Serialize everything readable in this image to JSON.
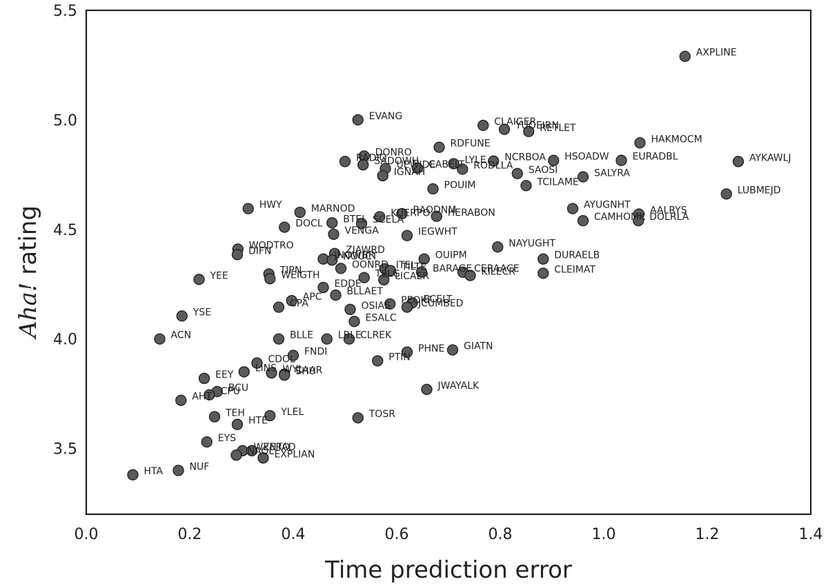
{
  "chart_data": {
    "type": "scatter",
    "xlabel": "Time prediction error",
    "ylabel_italic": "Aha!",
    "ylabel_rest": " rating",
    "xlim": [
      0.0,
      1.4
    ],
    "ylim": [
      3.2,
      5.5
    ],
    "x_ticks": [
      "0.0",
      "0.2",
      "0.4",
      "0.6",
      "0.8",
      "1.0",
      "1.2",
      "1.4"
    ],
    "y_ticks": [
      "3.5",
      "4.0",
      "4.5",
      "5.0",
      "5.5"
    ],
    "grid": false,
    "colors": {
      "marker_fill": "#5b5b5b",
      "marker_edge": "#1e1e1e",
      "text": "#222222"
    },
    "points": [
      {
        "label": "AXPLINE",
        "x": 1.157,
        "y": 5.29
      },
      {
        "label": "EVANG",
        "x": 0.525,
        "y": 5.0
      },
      {
        "label": "CLAIGER",
        "x": 0.767,
        "y": 4.975
      },
      {
        "label": "YUOEIRN",
        "x": 0.808,
        "y": 4.957
      },
      {
        "label": "RETLET",
        "x": 0.855,
        "y": 4.947
      },
      {
        "label": "HAKMOCM",
        "x": 1.07,
        "y": 4.895
      },
      {
        "label": "RDFUNE",
        "x": 0.682,
        "y": 4.875
      },
      {
        "label": "DONRO",
        "x": 0.537,
        "y": 4.835
      },
      {
        "label": "RADIO",
        "x": 0.5,
        "y": 4.81
      },
      {
        "label": "SADOWH",
        "x": 0.535,
        "y": 4.795
      },
      {
        "label": "UEWIDE",
        "x": 0.578,
        "y": 4.778
      },
      {
        "label": "CABELT",
        "x": 0.64,
        "y": 4.78
      },
      {
        "label": "LYLE",
        "x": 0.71,
        "y": 4.8
      },
      {
        "label": "RODLLA",
        "x": 0.727,
        "y": 4.775
      },
      {
        "label": "NCRBOA",
        "x": 0.787,
        "y": 4.812
      },
      {
        "label": "HSOADW",
        "x": 0.903,
        "y": 4.815
      },
      {
        "label": "EURADBL",
        "x": 1.034,
        "y": 4.815
      },
      {
        "label": "AYKAWLJ",
        "x": 1.26,
        "y": 4.81
      },
      {
        "label": "IGNAH",
        "x": 0.573,
        "y": 4.745
      },
      {
        "label": "SAOSI",
        "x": 0.833,
        "y": 4.755
      },
      {
        "label": "SALYRA",
        "x": 0.96,
        "y": 4.74
      },
      {
        "label": "POUIM",
        "x": 0.67,
        "y": 4.685
      },
      {
        "label": "TCILAME",
        "x": 0.85,
        "y": 4.7
      },
      {
        "label": "LUBMEJD",
        "x": 1.237,
        "y": 4.662
      },
      {
        "label": "HWY",
        "x": 0.313,
        "y": 4.595
      },
      {
        "label": "MARNOD",
        "x": 0.413,
        "y": 4.578
      },
      {
        "label": "RAODNM",
        "x": 0.61,
        "y": 4.572
      },
      {
        "label": "KUERPO",
        "x": 0.567,
        "y": 4.558
      },
      {
        "label": "HERABON",
        "x": 0.677,
        "y": 4.56
      },
      {
        "label": "AYUGNHT",
        "x": 0.94,
        "y": 4.595
      },
      {
        "label": "AALRYS",
        "x": 1.068,
        "y": 4.57
      },
      {
        "label": "CAMHOMK",
        "x": 0.96,
        "y": 4.54
      },
      {
        "label": "DOLRLA",
        "x": 1.067,
        "y": 4.54
      },
      {
        "label": "DOCL",
        "x": 0.383,
        "y": 4.51
      },
      {
        "label": "BTEL",
        "x": 0.475,
        "y": 4.53
      },
      {
        "label": "SCELA",
        "x": 0.532,
        "y": 4.527
      },
      {
        "label": "VENGA",
        "x": 0.478,
        "y": 4.478
      },
      {
        "label": "IEGWHT",
        "x": 0.62,
        "y": 4.472
      },
      {
        "label": "WODTRO",
        "x": 0.293,
        "y": 4.41
      },
      {
        "label": "DIFN",
        "x": 0.292,
        "y": 4.385
      },
      {
        "label": "NAYUGHT",
        "x": 0.795,
        "y": 4.42
      },
      {
        "label": "ZIAWRD",
        "x": 0.48,
        "y": 4.39
      },
      {
        "label": "JNOWBR",
        "x": 0.458,
        "y": 4.365
      },
      {
        "label": "NOUCT",
        "x": 0.475,
        "y": 4.36
      },
      {
        "label": "OUIPM",
        "x": 0.653,
        "y": 4.365
      },
      {
        "label": "DURAELB",
        "x": 0.883,
        "y": 4.365
      },
      {
        "label": "OONRD",
        "x": 0.492,
        "y": 4.322
      },
      {
        "label": "ITEL",
        "x": 0.577,
        "y": 4.32
      },
      {
        "label": "TILTE",
        "x": 0.588,
        "y": 4.312
      },
      {
        "label": "BARAGE",
        "x": 0.648,
        "y": 4.305
      },
      {
        "label": "CERAACE",
        "x": 0.728,
        "y": 4.305
      },
      {
        "label": "KILECR",
        "x": 0.742,
        "y": 4.29
      },
      {
        "label": "CLEIMAT",
        "x": 0.883,
        "y": 4.3
      },
      {
        "label": "TIPN",
        "x": 0.353,
        "y": 4.297
      },
      {
        "label": "WEIGTH",
        "x": 0.355,
        "y": 4.275
      },
      {
        "label": "YEE",
        "x": 0.218,
        "y": 4.272
      },
      {
        "label": "TELG",
        "x": 0.537,
        "y": 4.28
      },
      {
        "label": "LICAER",
        "x": 0.575,
        "y": 4.27
      },
      {
        "label": "EDDE",
        "x": 0.458,
        "y": 4.235
      },
      {
        "label": "BLLAET",
        "x": 0.482,
        "y": 4.2
      },
      {
        "label": "APC",
        "x": 0.397,
        "y": 4.175
      },
      {
        "label": "CPA",
        "x": 0.372,
        "y": 4.145
      },
      {
        "label": "PEOKF",
        "x": 0.587,
        "y": 4.16
      },
      {
        "label": "ECELT",
        "x": 0.63,
        "y": 4.165
      },
      {
        "label": "OSIAS",
        "x": 0.51,
        "y": 4.135
      },
      {
        "label": "JCUMBED",
        "x": 0.62,
        "y": 4.145
      },
      {
        "label": "YSE",
        "x": 0.185,
        "y": 4.105
      },
      {
        "label": "ESALC",
        "x": 0.518,
        "y": 4.08
      },
      {
        "label": "ACN",
        "x": 0.142,
        "y": 4.0
      },
      {
        "label": "BLLE",
        "x": 0.372,
        "y": 4.0
      },
      {
        "label": "LBLE",
        "x": 0.465,
        "y": 4.0
      },
      {
        "label": "CLREK",
        "x": 0.508,
        "y": 4.0
      },
      {
        "label": "PHNE",
        "x": 0.62,
        "y": 3.94
      },
      {
        "label": "GIATN",
        "x": 0.708,
        "y": 3.95
      },
      {
        "label": "FNDI",
        "x": 0.4,
        "y": 3.925
      },
      {
        "label": "PTIN",
        "x": 0.563,
        "y": 3.9
      },
      {
        "label": "CDOL",
        "x": 0.33,
        "y": 3.89
      },
      {
        "label": "LINS",
        "x": 0.305,
        "y": 3.85
      },
      {
        "label": "WYL",
        "x": 0.358,
        "y": 3.845
      },
      {
        "label": "CAAR",
        "x": 0.383,
        "y": 3.84
      },
      {
        "label": "SHU",
        "x": 0.383,
        "y": 3.835
      },
      {
        "label": "EEY",
        "x": 0.228,
        "y": 3.82
      },
      {
        "label": "BCU",
        "x": 0.253,
        "y": 3.76
      },
      {
        "label": "CPU",
        "x": 0.238,
        "y": 3.745
      },
      {
        "label": "AHT",
        "x": 0.183,
        "y": 3.72
      },
      {
        "label": "JWAYALK",
        "x": 0.658,
        "y": 3.77
      },
      {
        "label": "TEH",
        "x": 0.248,
        "y": 3.645
      },
      {
        "label": "YLEL",
        "x": 0.355,
        "y": 3.65
      },
      {
        "label": "HTE",
        "x": 0.292,
        "y": 3.61
      },
      {
        "label": "TOSR",
        "x": 0.525,
        "y": 3.64
      },
      {
        "label": "EYS",
        "x": 0.233,
        "y": 3.53
      },
      {
        "label": "WENTAD",
        "x": 0.302,
        "y": 3.49
      },
      {
        "label": "ZERO",
        "x": 0.32,
        "y": 3.49
      },
      {
        "label": "NAOL",
        "x": 0.29,
        "y": 3.47
      },
      {
        "label": "EXPLIAN",
        "x": 0.342,
        "y": 3.457
      },
      {
        "label": "HTA",
        "x": 0.09,
        "y": 3.38
      },
      {
        "label": "NUF",
        "x": 0.178,
        "y": 3.4
      }
    ]
  }
}
